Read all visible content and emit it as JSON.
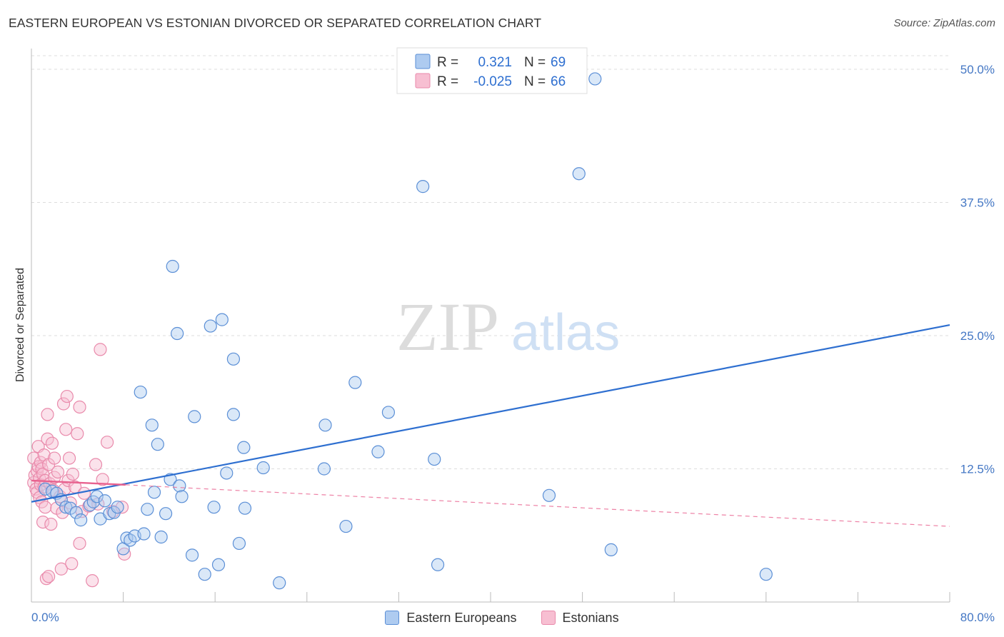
{
  "title": "EASTERN EUROPEAN VS ESTONIAN DIVORCED OR SEPARATED CORRELATION CHART",
  "source": "Source: ZipAtlas.com",
  "watermark": {
    "zip": "ZIP",
    "atlas": "atlas"
  },
  "colors": {
    "blue_fill": "#aecbf0",
    "blue_stroke": "#5b8fd6",
    "blue_line": "#2e6fd0",
    "pink_fill": "#f7bfd2",
    "pink_stroke": "#e98aab",
    "pink_line": "#e8628f",
    "grid": "#dddddd",
    "tick_text": "#4477c4"
  },
  "legend": {
    "rows": [
      {
        "r_label": "R =",
        "r_value": "0.321",
        "n_label": "N =",
        "n_value": "69"
      },
      {
        "r_label": "R =",
        "r_value": "-0.025",
        "n_label": "N =",
        "n_value": "66"
      }
    ]
  },
  "chart_data": {
    "type": "scatter",
    "title": "EASTERN EUROPEAN VS ESTONIAN DIVORCED OR SEPARATED CORRELATION CHART",
    "xlabel": "",
    "ylabel": "Divorced or Separated",
    "xlim": [
      0,
      80
    ],
    "ylim": [
      0,
      50
    ],
    "x_tick_labels": [
      "0.0%",
      "80.0%"
    ],
    "y_ticks": [
      12.5,
      25.0,
      37.5,
      50.0
    ],
    "y_tick_labels": [
      "12.5%",
      "25.0%",
      "37.5%",
      "50.0%"
    ],
    "grid": true,
    "series": [
      {
        "name": "Eastern Europeans",
        "r": 0.321,
        "n": 69,
        "trend": {
          "x": [
            0,
            80
          ],
          "y": [
            9.4,
            26.0
          ],
          "style": "solid"
        },
        "points": [
          [
            1.2,
            10.6
          ],
          [
            1.8,
            10.4
          ],
          [
            2.2,
            10.2
          ],
          [
            2.6,
            9.6
          ],
          [
            3.0,
            8.9
          ],
          [
            3.4,
            8.8
          ],
          [
            3.9,
            8.4
          ],
          [
            4.3,
            7.7
          ],
          [
            5.1,
            9.1
          ],
          [
            5.4,
            9.4
          ],
          [
            5.7,
            9.9
          ],
          [
            6.0,
            7.8
          ],
          [
            6.4,
            9.5
          ],
          [
            6.8,
            8.3
          ],
          [
            7.2,
            8.4
          ],
          [
            7.5,
            8.9
          ],
          [
            8.0,
            5.0
          ],
          [
            8.3,
            6.0
          ],
          [
            8.6,
            5.8
          ],
          [
            9.0,
            6.2
          ],
          [
            9.5,
            19.7
          ],
          [
            9.8,
            6.4
          ],
          [
            10.1,
            8.7
          ],
          [
            10.5,
            16.6
          ],
          [
            10.7,
            10.3
          ],
          [
            11.0,
            14.8
          ],
          [
            11.3,
            6.1
          ],
          [
            11.7,
            8.3
          ],
          [
            12.1,
            11.5
          ],
          [
            12.3,
            31.5
          ],
          [
            12.7,
            25.2
          ],
          [
            12.9,
            10.9
          ],
          [
            13.1,
            9.9
          ],
          [
            14.0,
            4.4
          ],
          [
            14.2,
            17.4
          ],
          [
            15.1,
            2.6
          ],
          [
            15.6,
            25.9
          ],
          [
            15.9,
            8.9
          ],
          [
            16.3,
            3.5
          ],
          [
            16.6,
            26.5
          ],
          [
            17.0,
            12.1
          ],
          [
            17.6,
            22.8
          ],
          [
            17.6,
            17.6
          ],
          [
            18.1,
            5.5
          ],
          [
            18.5,
            14.5
          ],
          [
            18.6,
            8.8
          ],
          [
            20.2,
            12.6
          ],
          [
            21.6,
            1.8
          ],
          [
            25.5,
            12.5
          ],
          [
            25.6,
            16.6
          ],
          [
            27.4,
            7.1
          ],
          [
            28.2,
            20.6
          ],
          [
            30.2,
            14.1
          ],
          [
            31.1,
            17.8
          ],
          [
            34.1,
            39.0
          ],
          [
            35.1,
            13.4
          ],
          [
            35.4,
            3.5
          ],
          [
            45.1,
            10.0
          ],
          [
            47.7,
            40.2
          ],
          [
            49.1,
            49.1
          ],
          [
            50.5,
            4.9
          ],
          [
            64.0,
            2.6
          ]
        ]
      },
      {
        "name": "Estonians",
        "r": -0.025,
        "n": 66,
        "trend_solid": {
          "x": [
            0,
            8.2
          ],
          "y": [
            11.4,
            11.0
          ],
          "style": "solid"
        },
        "trend_dashed": {
          "x": [
            8.2,
            80
          ],
          "y": [
            11.0,
            7.1
          ],
          "style": "dashed"
        },
        "points": [
          [
            0.2,
            13.5
          ],
          [
            0.2,
            11.2
          ],
          [
            0.3,
            11.9
          ],
          [
            0.4,
            10.6
          ],
          [
            0.5,
            12.3
          ],
          [
            0.5,
            10.3
          ],
          [
            0.6,
            14.6
          ],
          [
            0.6,
            12.7
          ],
          [
            0.7,
            11.6
          ],
          [
            0.7,
            9.8
          ],
          [
            0.8,
            13.1
          ],
          [
            0.8,
            11.0
          ],
          [
            0.9,
            12.5
          ],
          [
            0.9,
            9.4
          ],
          [
            1.0,
            7.5
          ],
          [
            1.0,
            12.0
          ],
          [
            1.1,
            10.8
          ],
          [
            1.1,
            13.8
          ],
          [
            1.2,
            11.4
          ],
          [
            1.2,
            8.9
          ],
          [
            1.3,
            2.2
          ],
          [
            1.4,
            17.6
          ],
          [
            1.4,
            15.3
          ],
          [
            1.5,
            12.9
          ],
          [
            1.5,
            2.4
          ],
          [
            1.6,
            11.1
          ],
          [
            1.7,
            7.3
          ],
          [
            1.8,
            14.9
          ],
          [
            1.9,
            10.5
          ],
          [
            2.0,
            13.5
          ],
          [
            2.0,
            11.7
          ],
          [
            2.2,
            8.8
          ],
          [
            2.3,
            12.2
          ],
          [
            2.5,
            9.9
          ],
          [
            2.6,
            3.1
          ],
          [
            2.7,
            8.4
          ],
          [
            2.8,
            18.6
          ],
          [
            2.9,
            10.6
          ],
          [
            3.0,
            16.2
          ],
          [
            3.1,
            19.3
          ],
          [
            3.2,
            11.4
          ],
          [
            3.3,
            13.5
          ],
          [
            3.4,
            9.3
          ],
          [
            3.5,
            3.6
          ],
          [
            3.6,
            12.0
          ],
          [
            3.8,
            10.8
          ],
          [
            4.0,
            15.8
          ],
          [
            4.2,
            18.3
          ],
          [
            4.2,
            5.5
          ],
          [
            4.4,
            8.5
          ],
          [
            4.6,
            10.2
          ],
          [
            5.0,
            9.0
          ],
          [
            5.3,
            2.0
          ],
          [
            5.6,
            12.9
          ],
          [
            5.8,
            9.2
          ],
          [
            6.0,
            23.7
          ],
          [
            6.2,
            11.5
          ],
          [
            6.6,
            15.0
          ],
          [
            7.1,
            8.5
          ],
          [
            7.9,
            8.9
          ],
          [
            8.1,
            4.5
          ]
        ]
      }
    ]
  },
  "bottom_legend": [
    {
      "label": "Eastern Europeans"
    },
    {
      "label": "Estonians"
    }
  ]
}
